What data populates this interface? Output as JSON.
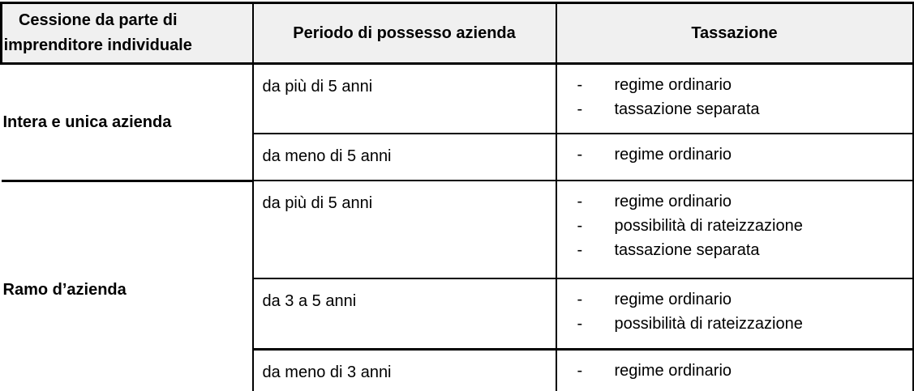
{
  "table": {
    "bullet": "-",
    "header": {
      "col1_line1": "Cessione da parte di",
      "col1_line2": "imprenditore individuale",
      "col2": "Periodo di possesso azienda",
      "col3": "Tassazione"
    },
    "sections": [
      {
        "label": "Intera e unica azienda",
        "rows": [
          {
            "period": "da più di 5 anni",
            "taxation": [
              "regime ordinario",
              "tassazione separata"
            ]
          },
          {
            "period": "da meno di 5 anni",
            "taxation": [
              "regime ordinario"
            ]
          }
        ]
      },
      {
        "label": "Ramo d’azienda",
        "rows": [
          {
            "period": "da più di 5 anni",
            "taxation": [
              "regime ordinario",
              "possibilità di rateizzazione",
              "tassazione separata"
            ]
          },
          {
            "period": "da 3 a 5 anni",
            "taxation": [
              "regime ordinario",
              "possibilità di rateizzazione"
            ]
          },
          {
            "period": "da meno di 3 anni",
            "taxation": [
              "regime ordinario"
            ]
          }
        ]
      }
    ]
  },
  "colors": {
    "header_bg": "#f0f0f0",
    "border": "#000000",
    "text": "#000000"
  }
}
